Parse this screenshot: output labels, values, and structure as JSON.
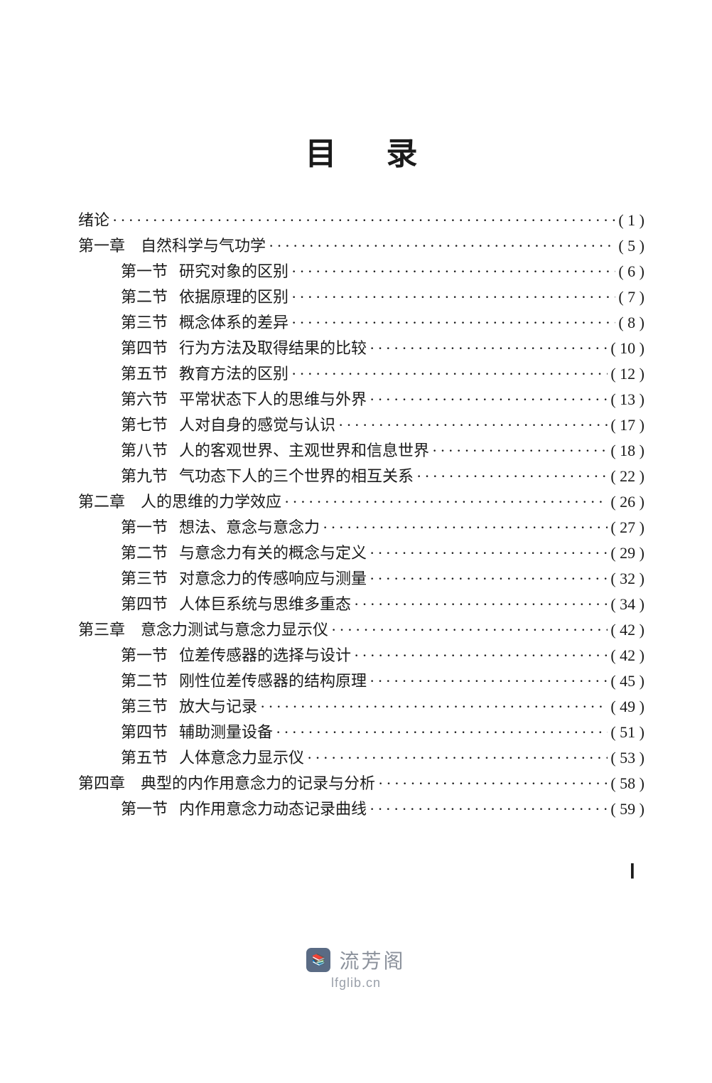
{
  "colors": {
    "background": "#ffffff",
    "text": "#1a1a1a",
    "footer_text": "#8a8f99",
    "footer_logo_bg": "#5a6b84"
  },
  "typography": {
    "body_font": "SimSun / 宋体",
    "body_size_pt": 16,
    "title_size_pt": 32,
    "line_spacing": 1.7
  },
  "title": "目录",
  "roman_page": "Ⅰ",
  "footer": {
    "name": "流芳阁",
    "url": "lfglib.cn",
    "logo_glyph": "📚"
  },
  "entries": [
    {
      "level": "chapter",
      "label": "绪论",
      "title": "",
      "page": "(  1  )"
    },
    {
      "level": "chapter",
      "label": "第一章",
      "title": "自然科学与气功学",
      "page": "(  5  )"
    },
    {
      "level": "section",
      "secnum": "第一节",
      "title": "研究对象的区别",
      "page": "(  6  )"
    },
    {
      "level": "section",
      "secnum": "第二节",
      "title": "依据原理的区别",
      "page": "(  7  )"
    },
    {
      "level": "section",
      "secnum": "第三节",
      "title": "概念体系的差异",
      "page": "(  8  )"
    },
    {
      "level": "section",
      "secnum": "第四节",
      "title": "行为方法及取得结果的比较",
      "page": "( 10 )"
    },
    {
      "level": "section",
      "secnum": "第五节",
      "title": "教育方法的区别",
      "page": "( 12 )"
    },
    {
      "level": "section",
      "secnum": "第六节",
      "title": "平常状态下人的思维与外界",
      "page": "( 13 )"
    },
    {
      "level": "section",
      "secnum": "第七节",
      "title": "人对自身的感觉与认识",
      "page": "( 17 )"
    },
    {
      "level": "section",
      "secnum": "第八节",
      "title": "人的客观世界、主观世界和信息世界",
      "page": "( 18 )"
    },
    {
      "level": "section",
      "secnum": "第九节",
      "title": "气功态下人的三个世界的相互关系",
      "page": "( 22 )"
    },
    {
      "level": "chapter",
      "label": "第二章",
      "title": "人的思维的力学效应",
      "page": "( 26 )"
    },
    {
      "level": "section",
      "secnum": "第一节",
      "title": "想法、意念与意念力",
      "page": "( 27 )"
    },
    {
      "level": "section",
      "secnum": "第二节",
      "title": "与意念力有关的概念与定义",
      "page": "( 29 )"
    },
    {
      "level": "section",
      "secnum": "第三节",
      "title": "对意念力的传感响应与测量",
      "page": "( 32 )"
    },
    {
      "level": "section",
      "secnum": "第四节",
      "title": "人体巨系统与思维多重态",
      "page": "( 34 )"
    },
    {
      "level": "chapter",
      "label": "第三章",
      "title": "意念力测试与意念力显示仪",
      "page": "( 42 )"
    },
    {
      "level": "section",
      "secnum": "第一节",
      "title": "位差传感器的选择与设计",
      "page": "( 42 )"
    },
    {
      "level": "section",
      "secnum": "第二节",
      "title": "刚性位差传感器的结构原理",
      "page": "( 45 )"
    },
    {
      "level": "section",
      "secnum": "第三节",
      "title": "放大与记录",
      "page": "( 49 )"
    },
    {
      "level": "section",
      "secnum": "第四节",
      "title": "辅助测量设备",
      "page": "( 51 )"
    },
    {
      "level": "section",
      "secnum": "第五节",
      "title": "人体意念力显示仪",
      "page": "( 53 )"
    },
    {
      "level": "chapter",
      "label": "第四章",
      "title": "典型的内作用意念力的记录与分析",
      "page": "( 58 )"
    },
    {
      "level": "section",
      "secnum": "第一节",
      "title": "内作用意念力动态记录曲线",
      "page": "( 59 )"
    }
  ]
}
